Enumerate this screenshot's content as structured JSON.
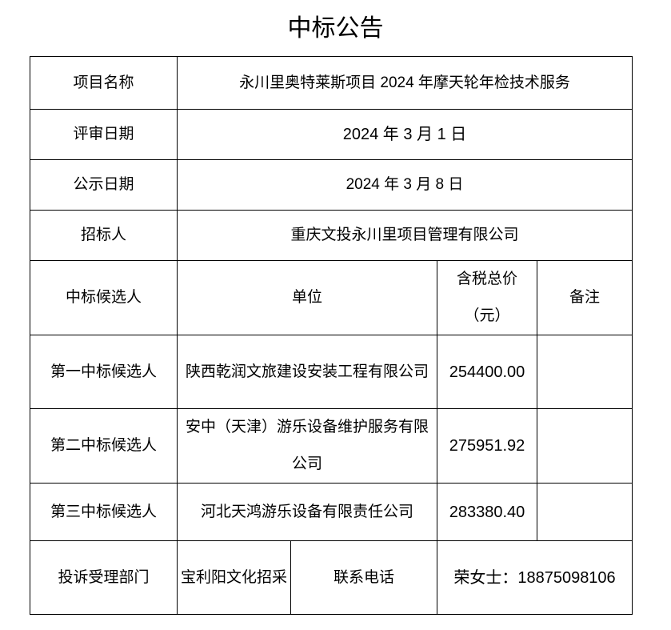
{
  "title": "中标公告",
  "info_rows": [
    {
      "label": "项目名称",
      "value": "永川里奥特莱斯项目 2024 年摩天轮年检技术服务"
    },
    {
      "label": "评审日期",
      "value": "2024 年 3 月 1 日"
    },
    {
      "label": "公示日期",
      "value": "2024 年 3 月 8 日"
    },
    {
      "label": "招标人",
      "value": "重庆文投永川里项目管理有限公司"
    }
  ],
  "candidates_header": {
    "col1": "中标候选人",
    "col2": "单位",
    "col3": "含税总价（元）",
    "col4": "备注"
  },
  "candidates": [
    {
      "rank": "第一中标候选人",
      "company": "陕西乾润文旅建设安装工程有限公司",
      "price": "254400.00",
      "note": ""
    },
    {
      "rank": "第二中标候选人",
      "company": "安中（天津）游乐设备维护服务有限公司",
      "price": "275951.92",
      "note": ""
    },
    {
      "rank": "第三中标候选人",
      "company": "河北天鸿游乐设备有限责任公司",
      "price": "283380.40",
      "note": ""
    }
  ],
  "complaint": {
    "label": "投诉受理部门",
    "department": "宝利阳文化招采",
    "phone_label": "联系电话",
    "phone": "荣女士：18875098106"
  }
}
